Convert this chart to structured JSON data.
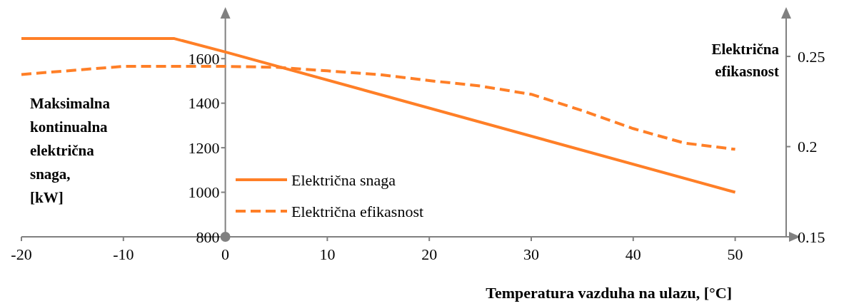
{
  "chart_data": {
    "type": "line",
    "xlabel": "Temperatura vazduha na ulazu, [°C]",
    "ylabel": "Maksimalna kontinualna električna snaga, [kW]",
    "y2label": "Električna efikasnost",
    "xlim": [
      -20,
      55
    ],
    "xticks": [
      -20,
      -10,
      0,
      10,
      20,
      30,
      40,
      50
    ],
    "ylim": [
      800,
      1780
    ],
    "yticks": [
      800,
      1000,
      1200,
      1400,
      1600
    ],
    "y2lim": [
      0.15,
      0.271
    ],
    "y2ticks": [
      0.15,
      0.2,
      0.25
    ],
    "legend": "bottom left",
    "grid": false,
    "marker": "none",
    "series": [
      {
        "name": "Električna snaga",
        "color": "#ff7f27",
        "line_style": "solid",
        "x": [
          -20,
          -5,
          0,
          50
        ],
        "values": [
          1690,
          1690,
          1630,
          1000
        ]
      },
      {
        "name": "Električna efikasnost",
        "color": "#ff7f27",
        "line_style": "dashed",
        "axis": "y2",
        "x": [
          -20,
          -10,
          -5,
          0,
          5,
          10,
          15,
          20,
          25,
          30,
          35,
          40,
          45,
          50
        ],
        "values": [
          0.24,
          0.2445,
          0.2445,
          0.2445,
          0.244,
          0.242,
          0.24,
          0.2366,
          0.2336,
          0.229,
          0.22,
          0.21,
          0.202,
          0.1985
        ]
      }
    ]
  }
}
